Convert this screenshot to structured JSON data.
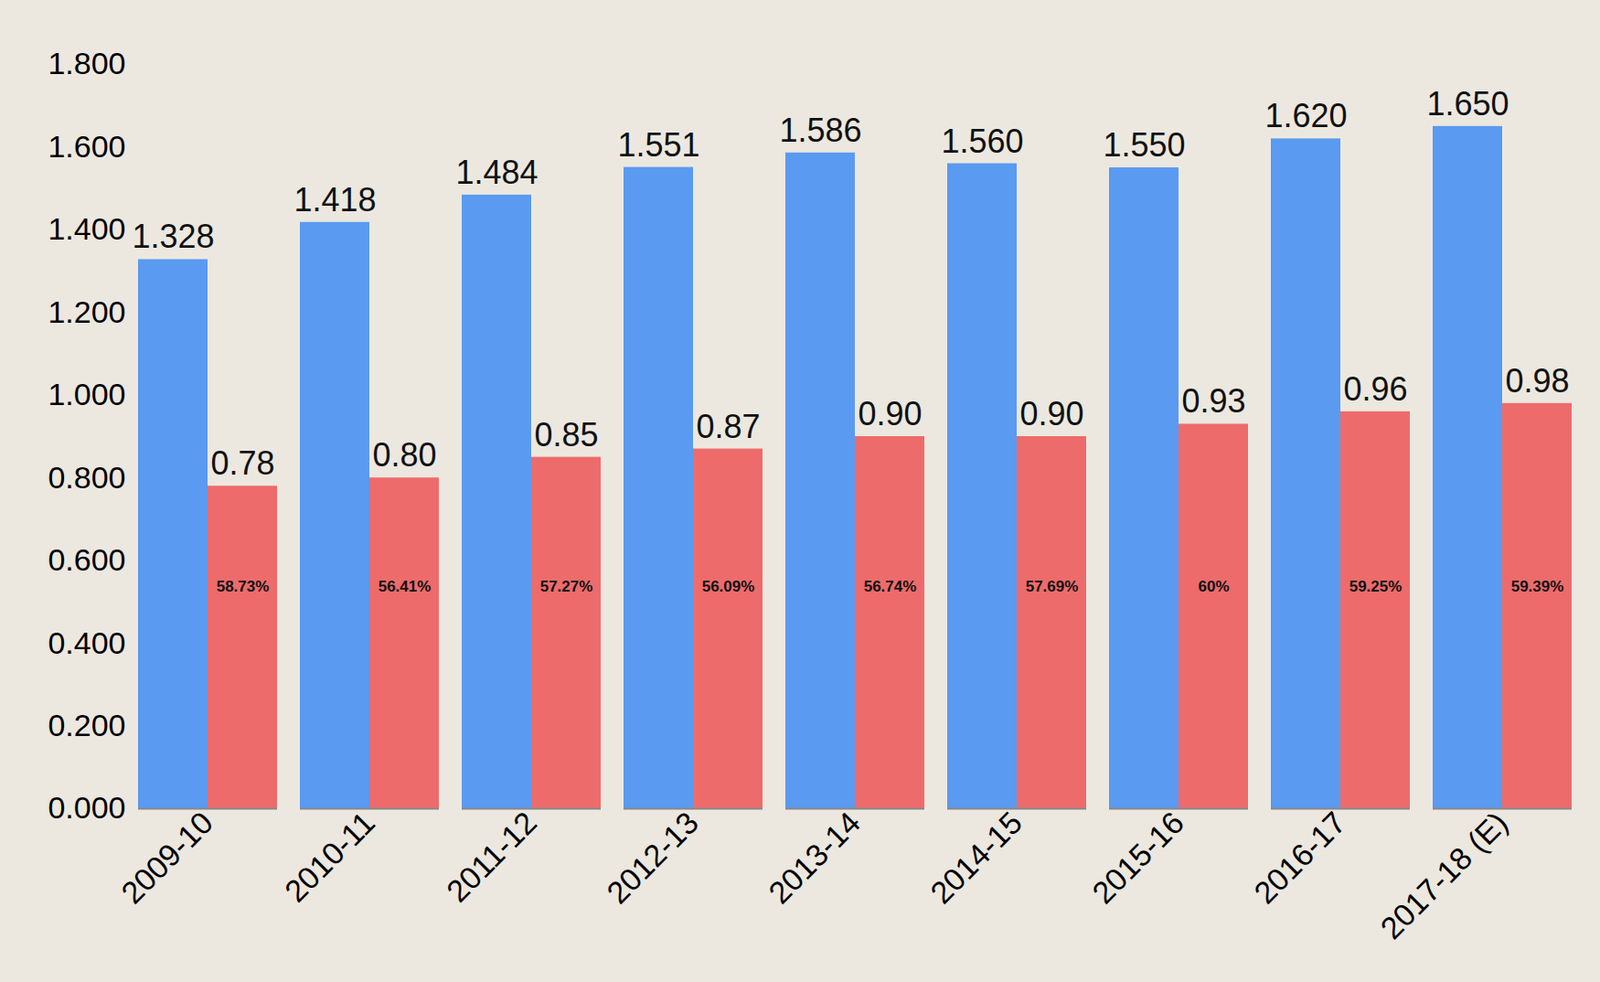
{
  "chart_data": {
    "type": "bar",
    "categories": [
      "2009-10",
      "2010-11",
      "2011-12",
      "2012-13",
      "2013-14",
      "2014-15",
      "2015-16",
      "2016-17",
      "2017-18 (E)"
    ],
    "series": [
      {
        "color": "#5a9af0",
        "values": [
          1.328,
          1.418,
          1.484,
          1.551,
          1.586,
          1.56,
          1.55,
          1.62,
          1.65
        ],
        "value_labels": [
          "1.328",
          "1.418",
          "1.484",
          "1.551",
          "1.586",
          "1.560",
          "1.550",
          "1.620",
          "1.650"
        ]
      },
      {
        "color": "#ee6b6b",
        "values": [
          0.78,
          0.8,
          0.85,
          0.87,
          0.9,
          0.9,
          0.93,
          0.96,
          0.98
        ],
        "value_labels": [
          "0.78",
          "0.80",
          "0.85",
          "0.87",
          "0.90",
          "0.90",
          "0.93",
          "0.96",
          "0.98"
        ],
        "inner_labels": [
          "58.73%",
          "56.41%",
          "57.27%",
          "56.09%",
          "56.74%",
          "57.69%",
          "60%",
          "59.25%",
          "59.39%"
        ]
      }
    ],
    "ylim": [
      0,
      1.8
    ],
    "yticks": [
      {
        "value": 0,
        "label": "0.000"
      },
      {
        "value": 0.2,
        "label": "0.200"
      },
      {
        "value": 0.4,
        "label": "0.400"
      },
      {
        "value": 0.6,
        "label": "0.600"
      },
      {
        "value": 0.8,
        "label": "0.800"
      },
      {
        "value": 1.0,
        "label": "1.000"
      },
      {
        "value": 1.2,
        "label": "1.200"
      },
      {
        "value": 1.4,
        "label": "1.400"
      },
      {
        "value": 1.6,
        "label": "1.600"
      },
      {
        "value": 1.8,
        "label": "1.800"
      }
    ],
    "grid": false,
    "data_labels": true
  }
}
